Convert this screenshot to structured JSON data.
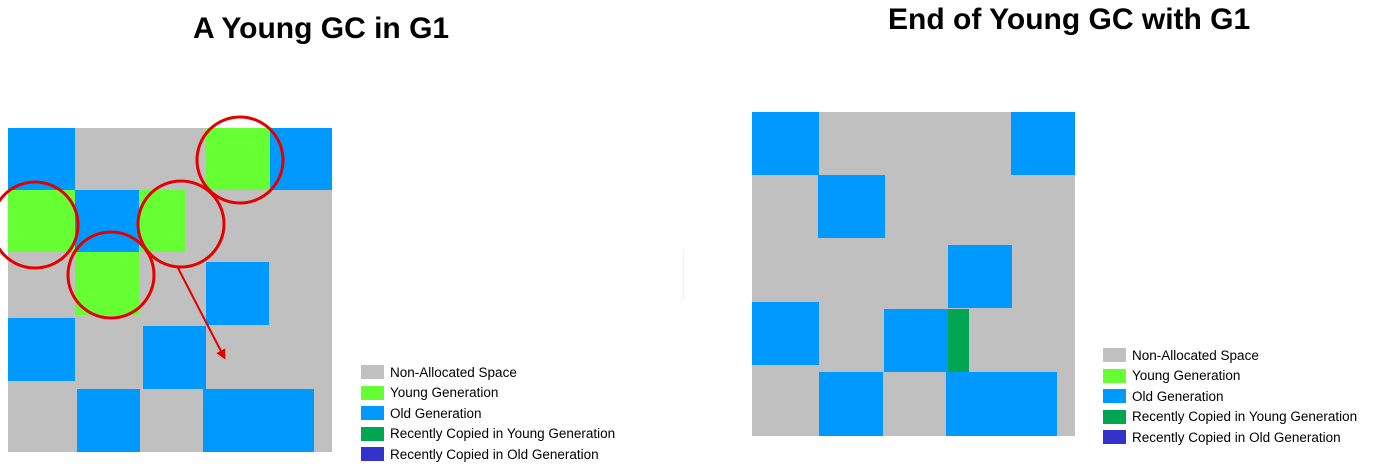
{
  "colors": {
    "non_allocated": "#c0c0c0",
    "young": "#66ff33",
    "old": "#0099ff",
    "recent_young": "#00a651",
    "recent_old": "#3333cc",
    "highlight": "#e50000"
  },
  "left": {
    "title": "A Young GC in G1",
    "legend": [
      {
        "label": "Non-Allocated Space",
        "color": "#c0c0c0"
      },
      {
        "label": "Young Generation",
        "color": "#66ff33"
      },
      {
        "label": "Old Generation",
        "color": "#0099ff"
      },
      {
        "label": "Recently Copied in Young Generation",
        "color": "#00a651"
      },
      {
        "label": "Recently Copied in Old Generation",
        "color": "#3333cc"
      }
    ]
  },
  "right": {
    "title": "End of Young GC with G1",
    "legend": [
      {
        "label": "Non-Allocated Space",
        "color": "#c0c0c0"
      },
      {
        "label": "Young Generation",
        "color": "#66ff33"
      },
      {
        "label": "Old Generation",
        "color": "#0099ff"
      },
      {
        "label": "Recently Copied in Young Generation",
        "color": "#00a651"
      },
      {
        "label": "Recently Copied in Old Generation",
        "color": "#3333cc"
      }
    ]
  }
}
